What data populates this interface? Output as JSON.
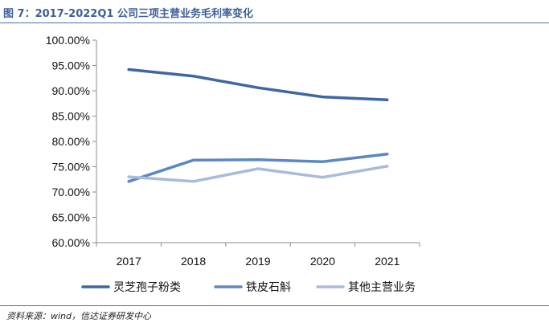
{
  "figure": {
    "title": "图 7：2017-2022Q1 公司三项主营业务毛利率变化",
    "source": "资料来源：wind，信达证券研发中心"
  },
  "colors": {
    "rule": "#4a6fa8",
    "title": "#3d5f96"
  },
  "chart_data": {
    "type": "line",
    "title": "",
    "xlabel": "",
    "ylabel": "",
    "categories": [
      "2017",
      "2018",
      "2019",
      "2020",
      "2021"
    ],
    "ylim": [
      0.6,
      1.0
    ],
    "yticks": [
      0.6,
      0.65,
      0.7,
      0.75,
      0.8,
      0.85,
      0.9,
      0.95,
      1.0
    ],
    "ytick_labels": [
      "60.00%",
      "65.00%",
      "70.00%",
      "75.00%",
      "80.00%",
      "85.00%",
      "90.00%",
      "95.00%",
      "100.00%"
    ],
    "grid": false,
    "legend_position": "bottom",
    "series": [
      {
        "name": "灵芝孢子粉类",
        "color": "#3e66a3",
        "values": [
          0.942,
          0.929,
          0.906,
          0.888,
          0.882
        ]
      },
      {
        "name": "铁皮石斛",
        "color": "#5b87c4",
        "values": [
          0.721,
          0.763,
          0.764,
          0.76,
          0.775
        ]
      },
      {
        "name": "其他主营业务",
        "color": "#a8bbdb",
        "values": [
          0.73,
          0.721,
          0.746,
          0.729,
          0.751
        ]
      }
    ]
  }
}
